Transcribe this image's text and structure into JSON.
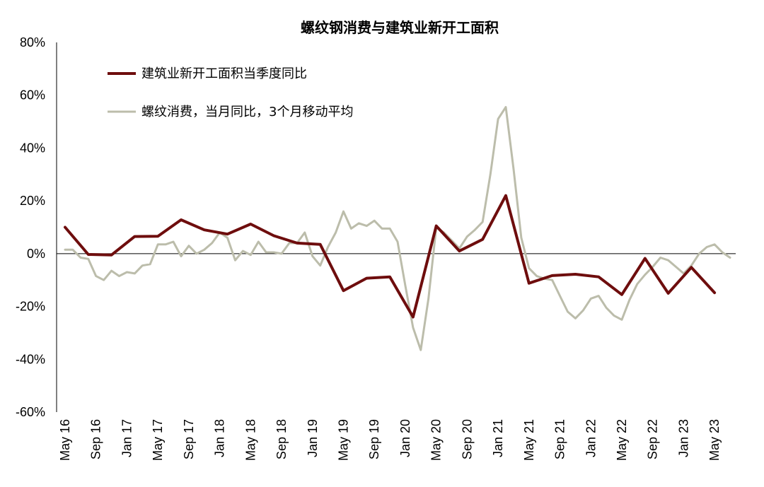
{
  "chart_data": {
    "type": "line",
    "title": "螺纹钢消费与建筑业新开工面积",
    "y_unit": "%",
    "ylim": [
      -60,
      80
    ],
    "y_ticks": [
      80,
      60,
      40,
      20,
      0,
      -20,
      -40,
      -60
    ],
    "y_tick_labels": [
      "80%",
      "60%",
      "40%",
      "20%",
      "0%",
      "-20%",
      "-40%",
      "-60%"
    ],
    "x_tick_labels": [
      "May 16",
      "Sep 16",
      "Jan 17",
      "May 17",
      "Sep 17",
      "Jan 18",
      "May 18",
      "Sep 18",
      "Jan 19",
      "May 19",
      "Sep 19",
      "Jan 20",
      "May 20",
      "Sep 20",
      "Jan 21",
      "May 21",
      "Sep 21",
      "Jan 22",
      "May 22",
      "Sep 22",
      "Jan 23",
      "May 23"
    ],
    "x_range_months": [
      "2016-05",
      "2023-07"
    ],
    "legend_position": "top-left",
    "grid": false,
    "series": [
      {
        "name": "建筑业新开工面积当季度同比",
        "color": "#6e0d0d",
        "points": [
          [
            "2016-05",
            10
          ],
          [
            "2016-08",
            -0.3
          ],
          [
            "2016-11",
            -0.5
          ],
          [
            "2017-02",
            6.5
          ],
          [
            "2017-05",
            6.6
          ],
          [
            "2017-08",
            12.8
          ],
          [
            "2017-11",
            9
          ],
          [
            "2018-02",
            7.4
          ],
          [
            "2018-05",
            11.2
          ],
          [
            "2018-08",
            6.8
          ],
          [
            "2018-11",
            4
          ],
          [
            "2019-02",
            3.5
          ],
          [
            "2019-05",
            -14
          ],
          [
            "2019-08",
            -9.3
          ],
          [
            "2019-11",
            -8.8
          ],
          [
            "2020-02",
            -24
          ],
          [
            "2020-05",
            10.5
          ],
          [
            "2020-08",
            1
          ],
          [
            "2020-11",
            5.4
          ],
          [
            "2021-02",
            22
          ],
          [
            "2021-05",
            -11.2
          ],
          [
            "2021-08",
            -8.3
          ],
          [
            "2021-11",
            -7.8
          ],
          [
            "2022-02",
            -8.8
          ],
          [
            "2022-05",
            -15.5
          ],
          [
            "2022-08",
            -1.8
          ],
          [
            "2022-11",
            -15
          ],
          [
            "2023-02",
            -5.2
          ],
          [
            "2023-05",
            -14.8
          ]
        ]
      },
      {
        "name": "螺纹消费，当月同比，3个月移动平均",
        "color": "#bcbdab",
        "points": [
          [
            "2016-05",
            1.5
          ],
          [
            "2016-06",
            1.5
          ],
          [
            "2016-07",
            -1.5
          ],
          [
            "2016-08",
            -2
          ],
          [
            "2016-09",
            -8.5
          ],
          [
            "2016-10",
            -10
          ],
          [
            "2016-11",
            -6.5
          ],
          [
            "2016-12",
            -8.5
          ],
          [
            "2017-01",
            -7
          ],
          [
            "2017-02",
            -7.5
          ],
          [
            "2017-03",
            -4.5
          ],
          [
            "2017-04",
            -4
          ],
          [
            "2017-05",
            3.5
          ],
          [
            "2017-06",
            3.5
          ],
          [
            "2017-07",
            4.5
          ],
          [
            "2017-08",
            -1
          ],
          [
            "2017-09",
            3
          ],
          [
            "2017-10",
            0
          ],
          [
            "2017-11",
            1.5
          ],
          [
            "2017-12",
            4
          ],
          [
            "2018-01",
            8
          ],
          [
            "2018-02",
            6
          ],
          [
            "2018-03",
            -2.5
          ],
          [
            "2018-04",
            1
          ],
          [
            "2018-05",
            -0.5
          ],
          [
            "2018-06",
            4.5
          ],
          [
            "2018-07",
            0.5
          ],
          [
            "2018-08",
            0.5
          ],
          [
            "2018-09",
            0
          ],
          [
            "2018-10",
            4
          ],
          [
            "2018-11",
            4
          ],
          [
            "2018-12",
            8
          ],
          [
            "2019-01",
            -1
          ],
          [
            "2019-02",
            -4.5
          ],
          [
            "2019-03",
            2.5
          ],
          [
            "2019-04",
            8
          ],
          [
            "2019-05",
            16
          ],
          [
            "2019-06",
            9.5
          ],
          [
            "2019-07",
            11.5
          ],
          [
            "2019-08",
            10.5
          ],
          [
            "2019-09",
            12.5
          ],
          [
            "2019-10",
            9.5
          ],
          [
            "2019-11",
            9.5
          ],
          [
            "2019-12",
            4.5
          ],
          [
            "2020-01",
            -12
          ],
          [
            "2020-02",
            -28
          ],
          [
            "2020-03",
            -36.5
          ],
          [
            "2020-04",
            -17
          ],
          [
            "2020-05",
            10
          ],
          [
            "2020-06",
            8
          ],
          [
            "2020-07",
            5
          ],
          [
            "2020-08",
            2
          ],
          [
            "2020-09",
            6.5
          ],
          [
            "2020-10",
            9
          ],
          [
            "2020-11",
            12
          ],
          [
            "2020-12",
            30
          ],
          [
            "2021-01",
            51
          ],
          [
            "2021-02",
            55.5
          ],
          [
            "2021-03",
            32
          ],
          [
            "2021-04",
            6
          ],
          [
            "2021-05",
            -5.5
          ],
          [
            "2021-06",
            -8.5
          ],
          [
            "2021-07",
            -9.5
          ],
          [
            "2021-08",
            -10
          ],
          [
            "2021-09",
            -16
          ],
          [
            "2021-10",
            -22
          ],
          [
            "2021-11",
            -24.5
          ],
          [
            "2021-12",
            -21.5
          ],
          [
            "2022-01",
            -17
          ],
          [
            "2022-02",
            -16
          ],
          [
            "2022-03",
            -20.5
          ],
          [
            "2022-04",
            -23.5
          ],
          [
            "2022-05",
            -25
          ],
          [
            "2022-06",
            -17.5
          ],
          [
            "2022-07",
            -11.5
          ],
          [
            "2022-08",
            -8
          ],
          [
            "2022-09",
            -5
          ],
          [
            "2022-10",
            -1.5
          ],
          [
            "2022-11",
            -2.5
          ],
          [
            "2022-12",
            -5
          ],
          [
            "2023-01",
            -7.5
          ],
          [
            "2023-02",
            -4.5
          ],
          [
            "2023-03",
            0
          ],
          [
            "2023-04",
            2.5
          ],
          [
            "2023-05",
            3.5
          ],
          [
            "2023-06",
            0.5
          ],
          [
            "2023-07",
            -1.5
          ]
        ]
      }
    ]
  }
}
